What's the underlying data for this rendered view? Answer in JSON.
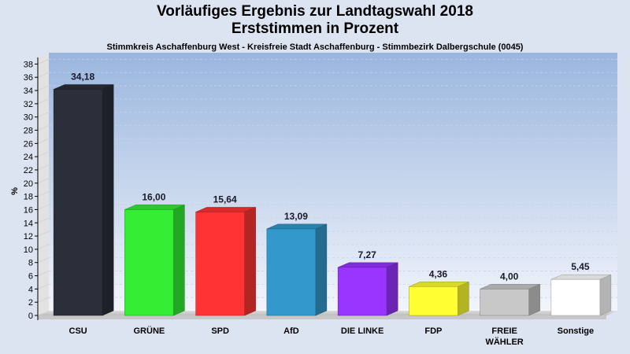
{
  "chart_data": {
    "type": "bar",
    "title": "Vorläufiges Ergebnis zur Landtagswahl 2018",
    "subtitle_line": "Erststimmen in Prozent",
    "subtitle": "Stimmkreis Aschaffenburg West - Kreisfreie Stadt Aschaffenburg - Stimmbezirk Dalbergschule (0045)",
    "ylabel": "%",
    "xlabel": "",
    "ylim": [
      0,
      39
    ],
    "yticks": [
      0,
      2,
      4,
      6,
      8,
      10,
      12,
      14,
      16,
      18,
      20,
      22,
      24,
      26,
      28,
      30,
      32,
      34,
      36,
      38
    ],
    "grid": true,
    "categories": [
      "CSU",
      "GRÜNE",
      "SPD",
      "AfD",
      "DIE LINKE",
      "FDP",
      "FREIE WÄHLER",
      "Sonstige"
    ],
    "category_lines": [
      [
        "CSU"
      ],
      [
        "GRÜNE"
      ],
      [
        "SPD"
      ],
      [
        "AfD"
      ],
      [
        "DIE LINKE"
      ],
      [
        "FDP"
      ],
      [
        "FREIE",
        "WÄHLER"
      ],
      [
        "Sonstige"
      ]
    ],
    "values": [
      34.18,
      16.0,
      15.64,
      13.09,
      7.27,
      4.36,
      4.0,
      5.45
    ],
    "value_labels": [
      "34,18",
      "16,00",
      "15,64",
      "13,09",
      "7,27",
      "4,36",
      "4,00",
      "5,45"
    ],
    "colors": [
      "#2b2f3a",
      "#33ee33",
      "#ff3333",
      "#3399cc",
      "#9933ff",
      "#ffff33",
      "#c8c8c8",
      "#ffffff"
    ]
  }
}
